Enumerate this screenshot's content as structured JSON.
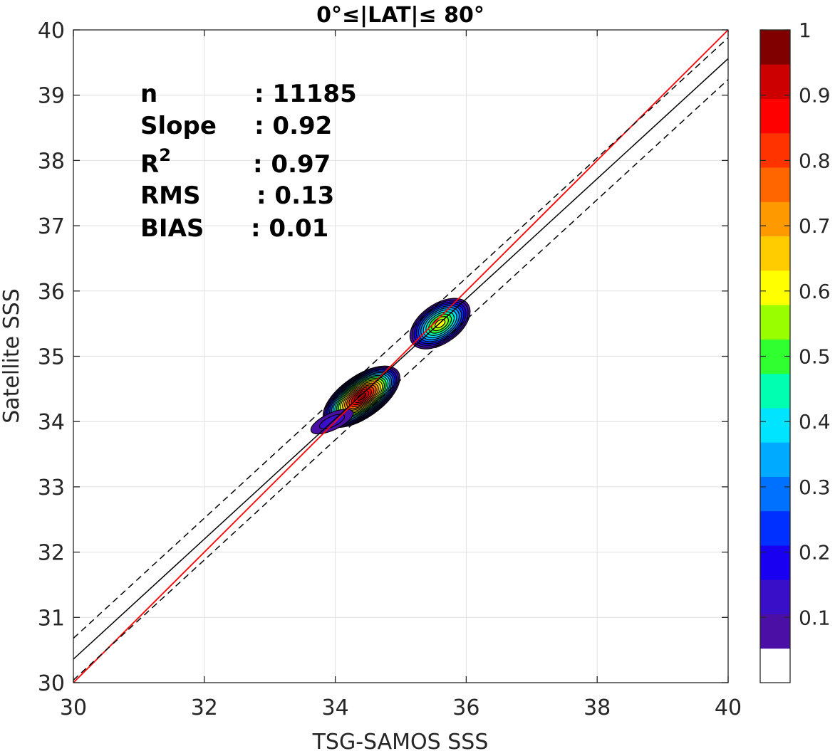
{
  "chart_data": {
    "type": "contour",
    "title": "0°≤|LAT|≤ 80°",
    "xlabel": "TSG-SAMOS SSS",
    "ylabel": "Satellite SSS",
    "xlim": [
      30,
      40
    ],
    "ylim": [
      30,
      40
    ],
    "xticks": [
      "30",
      "32",
      "34",
      "36",
      "38",
      "40"
    ],
    "yticks": [
      "30",
      "31",
      "32",
      "33",
      "34",
      "35",
      "36",
      "37",
      "38",
      "39",
      "40"
    ],
    "grid": true,
    "stats": [
      {
        "label": "n",
        "value": ": 11185"
      },
      {
        "label": "Slope",
        "value": ": 0.92"
      },
      {
        "label": "R",
        "sup": "2",
        "value": ": 0.97"
      },
      {
        "label": "RMS",
        "value": ": 0.13"
      },
      {
        "label": "BIAS",
        "value": ": 0.01"
      }
    ],
    "lines": [
      {
        "kind": "one-to-one",
        "color": "#ff0000",
        "slope": 1.0,
        "intercept": 0.0
      },
      {
        "kind": "regression",
        "color": "#000000",
        "slope": 0.92,
        "intercept": 2.76
      },
      {
        "kind": "upper-bound",
        "color": "#000000",
        "dash": true,
        "slope": 0.92,
        "intercept": 3.08
      },
      {
        "kind": "lower-bound",
        "color": "#000000",
        "dash": true,
        "slope": 0.92,
        "intercept": 2.44
      }
    ],
    "density_clusters": [
      {
        "cx": 34.4,
        "cy": 34.38,
        "rx": 0.68,
        "ry": 0.32,
        "angle": 35,
        "peak": 1.0
      },
      {
        "cx": 33.95,
        "cy": 34.0,
        "rx": 0.35,
        "ry": 0.13,
        "angle": 25,
        "peak": 0.13
      },
      {
        "cx": 35.6,
        "cy": 35.5,
        "rx": 0.52,
        "ry": 0.3,
        "angle": 35,
        "peak": 0.62
      }
    ],
    "colorbar": {
      "ticks": [
        "0.1",
        "0.2",
        "0.3",
        "0.4",
        "0.5",
        "0.6",
        "0.7",
        "0.8",
        "0.9",
        "1"
      ],
      "colors": [
        "#ffffff",
        "#4b0fa5",
        "#3a0fc8",
        "#1a00f0",
        "#0030ff",
        "#0070ff",
        "#00aaff",
        "#00e4ff",
        "#00ffb0",
        "#30ff30",
        "#99ff00",
        "#ffff00",
        "#ffcc00",
        "#ff9900",
        "#ff6600",
        "#ff3300",
        "#ff0000",
        "#cc0000",
        "#800000"
      ]
    }
  }
}
